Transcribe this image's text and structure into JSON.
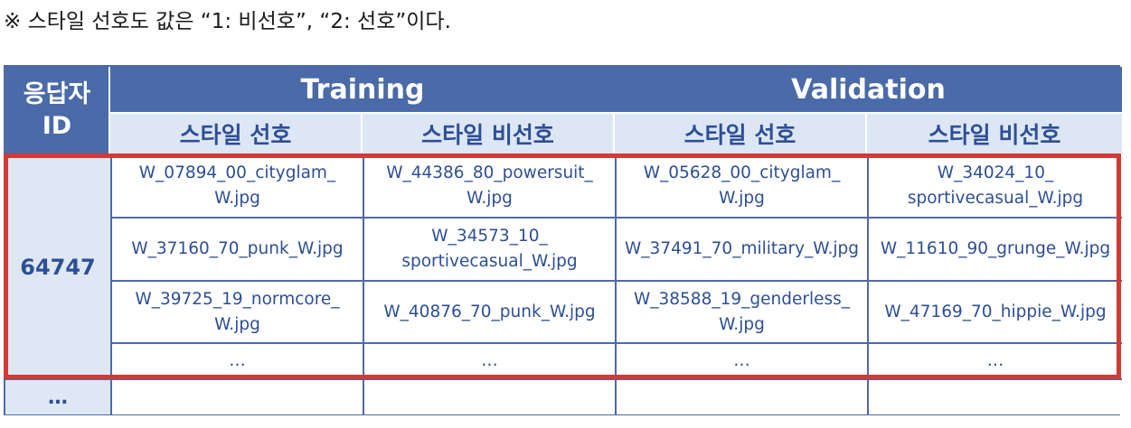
{
  "note": "※ 스타일 선호도 값은 “1: 비선호”, “2: 선호”이다.",
  "header": {
    "id_line1": "응답자",
    "id_line2": "ID",
    "training": "Training",
    "validation": "Validation",
    "sub": [
      "스타일 선호",
      "스타일 비선호",
      "스타일 선호",
      "스타일 비선호"
    ]
  },
  "respondent_id": "64747",
  "more_rows": "…",
  "rows": [
    [
      [
        "W_07894_00_cityglam_",
        "W.jpg"
      ],
      [
        "W_44386_80_powersuit_",
        "W.jpg"
      ],
      [
        "W_05628_00_cityglam_",
        "W.jpg"
      ],
      [
        "W_34024_10_",
        "sportivecasual_W.jpg"
      ]
    ],
    [
      [
        "W_37160_70_punk_W.jpg",
        ""
      ],
      [
        "W_34573_10_",
        "sportivecasual_W.jpg"
      ],
      [
        "W_37491_70_military_W.jpg",
        ""
      ],
      [
        "W_11610_90_grunge_W.jpg",
        ""
      ]
    ],
    [
      [
        "W_39725_19_normcore_",
        "W.jpg"
      ],
      [
        "W_40876_70_punk_W.jpg",
        ""
      ],
      [
        "W_38588_19_genderless_",
        "W.jpg"
      ],
      [
        "W_47169_70_hippie_W.jpg",
        ""
      ]
    ],
    [
      [
        "…",
        ""
      ],
      [
        "…",
        ""
      ],
      [
        "…",
        ""
      ],
      [
        "…",
        ""
      ]
    ],
    [
      [
        "",
        ""
      ],
      [
        "",
        ""
      ],
      [
        "",
        ""
      ],
      [
        "",
        ""
      ]
    ]
  ],
  "colors": {
    "header_bg": "#4a6aa8",
    "subheader_bg": "#dde6f4",
    "text_blue": "#2d4f96",
    "highlight": "#d23a35"
  }
}
